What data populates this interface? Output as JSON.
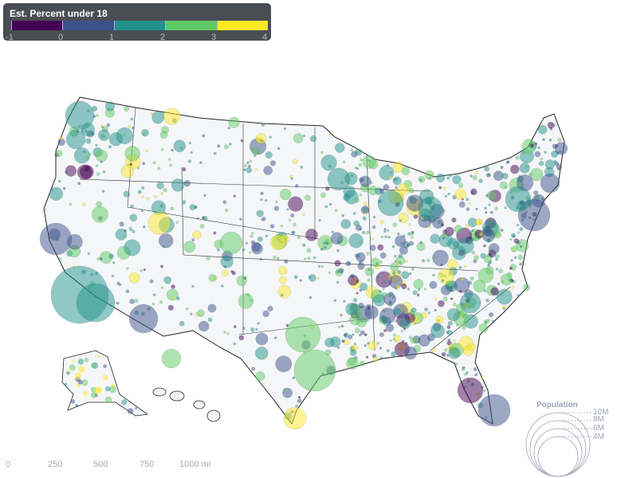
{
  "color_legend": {
    "title": "Est. Percent under 18",
    "colors": [
      "#440154",
      "#3b528b",
      "#21918c",
      "#5ec962",
      "#fde725"
    ],
    "ticks": [
      "-1",
      "0",
      "1",
      "2",
      "3",
      "4"
    ]
  },
  "size_legend": {
    "title": "Population",
    "labels": [
      "10M",
      "8M",
      "6M",
      "4M"
    ]
  },
  "scale_bar": {
    "labels": [
      "0",
      "250",
      "500",
      "750",
      "1000 mi"
    ]
  },
  "map": {
    "land_color": "#f4f6f8",
    "border_color": "#222222",
    "bubble_opacity": 0.5
  }
}
